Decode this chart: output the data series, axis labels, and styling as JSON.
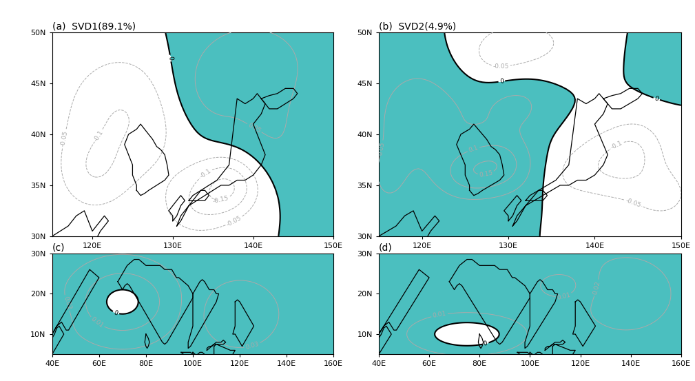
{
  "titles_ab": [
    "(a)  SVD1(89.1%)",
    "(b)  SVD2(4.9%)"
  ],
  "titles_cd": [
    "(c)",
    "(d)"
  ],
  "teal_color": "#4BBFBF",
  "neg_contour_color": "#AAAAAA",
  "background_color": "#ffffff",
  "panel_ab": {
    "lon_range": [
      115,
      150
    ],
    "lat_range": [
      30,
      50
    ],
    "xticks": [
      120,
      130,
      140,
      150
    ],
    "yticks": [
      30,
      35,
      40,
      45,
      50
    ]
  },
  "panel_cd": {
    "lon_range": [
      40,
      160
    ],
    "lat_range": [
      5,
      30
    ],
    "xticks": [
      40,
      60,
      80,
      100,
      120,
      140,
      160
    ],
    "yticks": [
      10,
      20,
      30
    ]
  }
}
